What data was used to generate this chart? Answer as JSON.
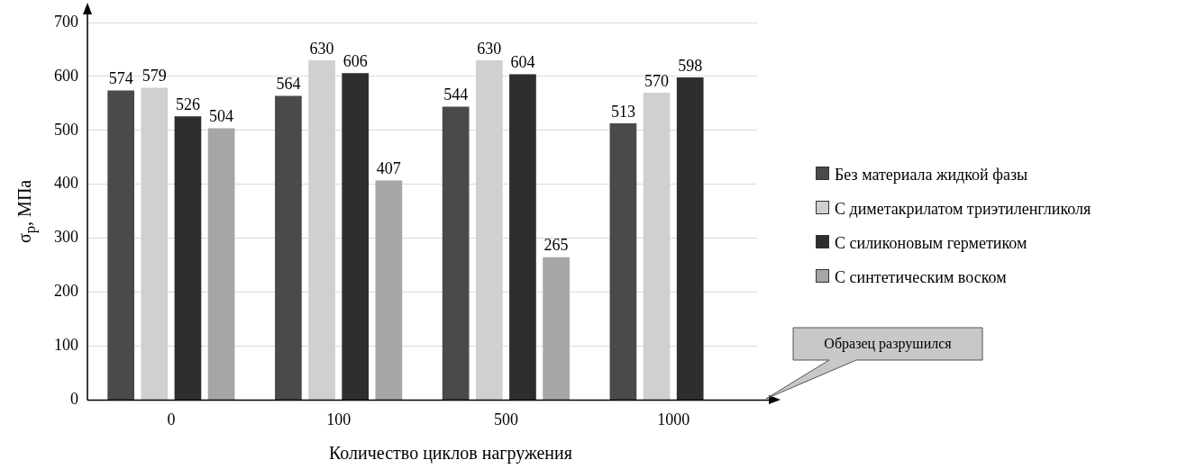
{
  "chart_data": {
    "type": "bar",
    "xlabel": "Количество циклов нагружения",
    "ylabel": "σ$_{p}$, МПа",
    "categories": [
      "0",
      "100",
      "500",
      "1000"
    ],
    "series": [
      {
        "name": "Без материала жидкой фазы",
        "color": "#4a4a4a",
        "values": [
          574,
          564,
          544,
          513
        ]
      },
      {
        "name": "С диметакрилатом триэтиленгликоля",
        "color": "#d0d0d0",
        "values": [
          579,
          630,
          630,
          570
        ]
      },
      {
        "name": "С силиконовым герметиком",
        "color": "#2e2e2e",
        "values": [
          526,
          606,
          604,
          598
        ]
      },
      {
        "name": "С синтетическим воском",
        "color": "#a6a6a6",
        "values": [
          504,
          407,
          265,
          null
        ]
      }
    ],
    "ylim": [
      0,
      700
    ],
    "yticks": [
      0,
      100,
      200,
      300,
      400,
      500,
      600,
      700
    ],
    "grid": "y",
    "legend": "right",
    "data_labels": true,
    "annotations": [
      "Образец разрушился"
    ]
  }
}
